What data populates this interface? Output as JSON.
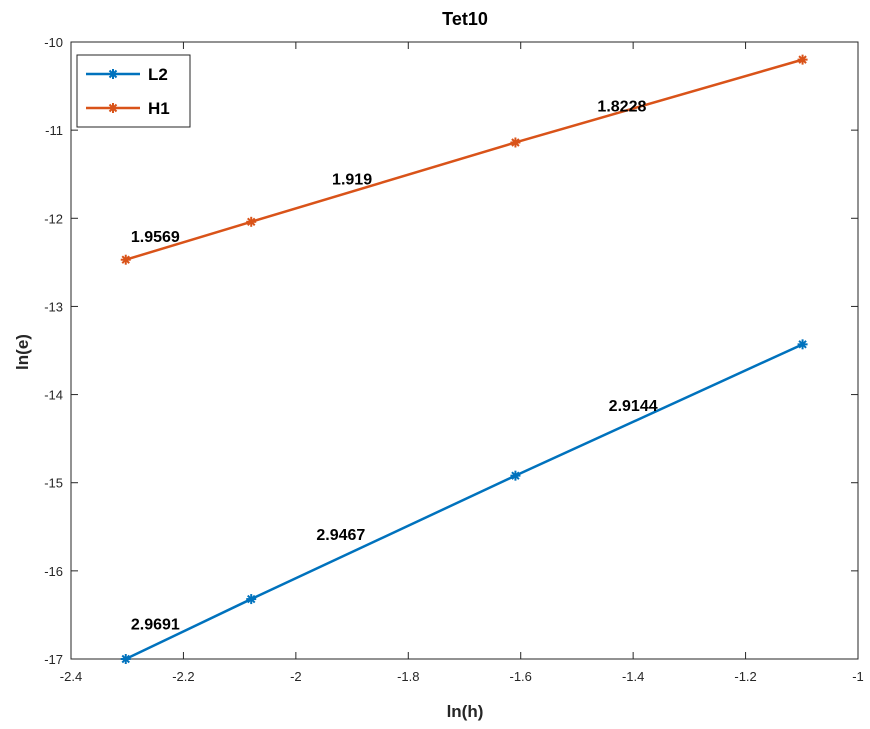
{
  "chart_data": {
    "type": "line",
    "title": "Tet10",
    "xlabel": "ln(h)",
    "ylabel": "ln(e)",
    "xlim": [
      -2.4,
      -1
    ],
    "ylim": [
      -17,
      -10
    ],
    "x_ticks": [
      "-2.4",
      "-2.2",
      "-2",
      "-1.8",
      "-1.6",
      "-1.4",
      "-1.2",
      "-1"
    ],
    "y_ticks": [
      "-10",
      "-11",
      "-12",
      "-13",
      "-14",
      "-15",
      "-16",
      "-17"
    ],
    "grid": false,
    "legend_position": "top-left",
    "series": [
      {
        "name": "L2",
        "color": "#0072BD",
        "marker": "asterisk",
        "x": [
          -2.3026,
          -2.0794,
          -1.6094,
          -1.0986
        ],
        "y": [
          -17.0,
          -16.32,
          -14.92,
          -13.43
        ]
      },
      {
        "name": "H1",
        "color": "#D95319",
        "marker": "asterisk",
        "x": [
          -2.3026,
          -2.0794,
          -1.6094,
          -1.0986
        ],
        "y": [
          -12.47,
          -12.04,
          -11.14,
          -10.2
        ]
      }
    ],
    "annotations": [
      {
        "text": "2.9691",
        "x": -2.25,
        "y": -16.6
      },
      {
        "text": "2.9467",
        "x": -1.92,
        "y": -15.58
      },
      {
        "text": "2.9144",
        "x": -1.4,
        "y": -14.12
      },
      {
        "text": "1.9569",
        "x": -2.25,
        "y": -12.2
      },
      {
        "text": "1.919",
        "x": -1.9,
        "y": -11.55
      },
      {
        "text": "1.8228",
        "x": -1.42,
        "y": -10.72
      }
    ]
  }
}
